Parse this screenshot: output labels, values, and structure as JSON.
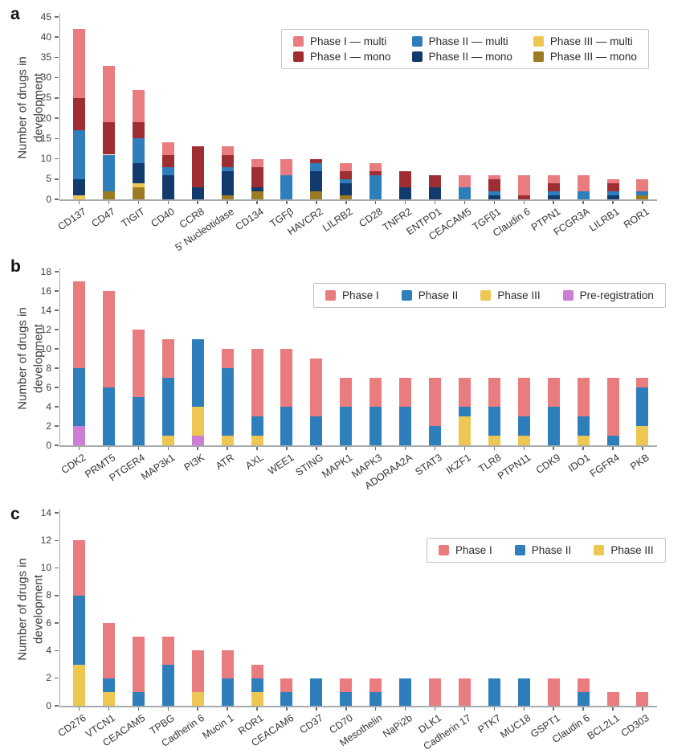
{
  "figure": {
    "panel_letters": [
      "a",
      "b",
      "c"
    ],
    "background_color": "#ffffff",
    "axis_color": "#a6abb0"
  },
  "chart_data": [
    {
      "panel_label": "a",
      "type": "bar",
      "stacked": true,
      "title": "",
      "xlabel": "",
      "ylabel": "Number of drugs in development",
      "ylabel_line1": "Number of drugs in",
      "ylabel_line2": "development",
      "ylim": [
        0,
        45
      ],
      "yticks": [
        0,
        5,
        10,
        15,
        20,
        25,
        30,
        35,
        40,
        45
      ],
      "grid": false,
      "legend_position": "top-right",
      "legend_rows": 2,
      "categories": [
        "CD137",
        "CD47",
        "TIGIT",
        "CD40",
        "CCR8",
        "5' Nucleotidase",
        "CD134",
        "TGFβ",
        "HAVCR2",
        "LILRB2",
        "CD28",
        "TNFR2",
        "ENTPD1",
        "CEACAM5",
        "TGFβ1",
        "Claudin 6",
        "PTPN1",
        "FCGR3A",
        "LILRB1",
        "ROR1"
      ],
      "series": [
        {
          "name": "Phase I — multi",
          "color": "#E97C7E",
          "values": [
            17,
            14,
            8,
            3,
            0,
            2,
            2,
            4,
            0,
            2,
            2,
            0,
            0,
            3,
            1,
            5,
            2,
            4,
            1,
            3
          ]
        },
        {
          "name": "Phase I — mono",
          "color": "#9F2E33",
          "values": [
            8,
            8,
            4,
            3,
            10,
            3,
            5,
            0,
            1,
            2,
            1,
            4,
            3,
            0,
            3,
            1,
            2,
            0,
            2,
            0
          ]
        },
        {
          "name": "Phase II — multi",
          "color": "#2F7EBC",
          "values": [
            12,
            9,
            6,
            2,
            0,
            1,
            0,
            6,
            2,
            1,
            6,
            0,
            0,
            3,
            1,
            0,
            1,
            2,
            1,
            1
          ]
        },
        {
          "name": "Phase II — mono",
          "color": "#123A6D",
          "values": [
            4,
            0,
            5,
            6,
            3,
            6,
            1,
            0,
            5,
            3,
            0,
            3,
            3,
            0,
            1,
            0,
            1,
            0,
            1,
            0
          ]
        },
        {
          "name": "Phase III — multi",
          "color": "#EDC751",
          "values": [
            1,
            0,
            1,
            0,
            0,
            0,
            0,
            0,
            0,
            0,
            0,
            0,
            0,
            0,
            0,
            0,
            0,
            0,
            0,
            0
          ]
        },
        {
          "name": "Phase III — mono",
          "color": "#9C7B22",
          "values": [
            0,
            2,
            3,
            0,
            0,
            1,
            2,
            0,
            2,
            1,
            0,
            0,
            0,
            0,
            0,
            0,
            0,
            0,
            0,
            1
          ]
        }
      ],
      "stack_order_bottom_to_top": [
        "Phase III — mono",
        "Phase III — multi",
        "Phase II — mono",
        "Phase II — multi",
        "Phase I — mono",
        "Phase I — multi"
      ]
    },
    {
      "panel_label": "b",
      "type": "bar",
      "stacked": true,
      "title": "",
      "xlabel": "",
      "ylabel": "Number of drugs in development",
      "ylabel_line1": "Number of drugs in",
      "ylabel_line2": "development",
      "ylim": [
        0,
        18
      ],
      "yticks": [
        0,
        2,
        4,
        6,
        8,
        10,
        12,
        14,
        16,
        18
      ],
      "grid": false,
      "legend_position": "top-right",
      "legend_rows": 1,
      "categories": [
        "CDK2",
        "PRMT5",
        "PTGER4",
        "MAP3k1",
        "PI3K",
        "ATR",
        "AXL",
        "WEE1",
        "STING",
        "MAPK1",
        "MAPK3",
        "ADORAA2A",
        "STAT3",
        "IKZF1",
        "TLR8",
        "PTPN11",
        "CDK9",
        "IDO1",
        "FGFR4",
        "PKB"
      ],
      "series": [
        {
          "name": "Phase I",
          "color": "#E97C7E",
          "values": [
            9,
            10,
            7,
            4,
            0,
            2,
            7,
            6,
            6,
            3,
            3,
            3,
            5,
            3,
            3,
            4,
            3,
            4,
            6,
            1
          ]
        },
        {
          "name": "Phase II",
          "color": "#2F7EBC",
          "values": [
            6,
            6,
            5,
            6,
            7,
            7,
            2,
            4,
            3,
            4,
            4,
            4,
            2,
            1,
            3,
            2,
            4,
            2,
            1,
            4
          ]
        },
        {
          "name": "Phase III",
          "color": "#EDC751",
          "values": [
            0,
            0,
            0,
            1,
            3,
            1,
            1,
            0,
            0,
            0,
            0,
            0,
            0,
            3,
            1,
            1,
            0,
            1,
            0,
            2
          ]
        },
        {
          "name": "Pre-registration",
          "color": "#CC7DD4",
          "values": [
            2,
            0,
            0,
            0,
            1,
            0,
            0,
            0,
            0,
            0,
            0,
            0,
            0,
            0,
            0,
            0,
            0,
            0,
            0,
            0
          ]
        }
      ],
      "stack_order_bottom_to_top": [
        "Pre-registration",
        "Phase III",
        "Phase II",
        "Phase I"
      ]
    },
    {
      "panel_label": "c",
      "type": "bar",
      "stacked": true,
      "title": "",
      "xlabel": "",
      "ylabel": "Number of drugs in development",
      "ylabel_line1": "Number of drugs in",
      "ylabel_line2": "development",
      "ylim": [
        0,
        14
      ],
      "yticks": [
        0,
        2,
        4,
        6,
        8,
        10,
        12,
        14
      ],
      "grid": false,
      "legend_position": "top-right",
      "legend_rows": 1,
      "categories": [
        "CD276",
        "VTCN1",
        "CEACAM5",
        "TPBG",
        "Cadherin 6",
        "Mucin 1",
        "ROR1",
        "CEACAM6",
        "CD37",
        "CD70",
        "Mesothelin",
        "NaPi2b",
        "DLK1",
        "Cadherin 17",
        "PTK7",
        "MUC18",
        "GSPT1",
        "Claudin 6",
        "BCL2L1",
        "CD303"
      ],
      "series": [
        {
          "name": "Phase I",
          "color": "#E97C7E",
          "values": [
            4,
            4,
            4,
            2,
            3,
            2,
            1,
            1,
            0,
            1,
            1,
            0,
            2,
            2,
            0,
            0,
            2,
            1,
            1,
            1
          ]
        },
        {
          "name": "Phase II",
          "color": "#2F7EBC",
          "values": [
            5,
            1,
            1,
            3,
            0,
            2,
            1,
            1,
            2,
            1,
            1,
            2,
            0,
            0,
            2,
            2,
            0,
            1,
            0,
            0
          ]
        },
        {
          "name": "Phase III",
          "color": "#EDC751",
          "values": [
            3,
            1,
            0,
            0,
            1,
            0,
            1,
            0,
            0,
            0,
            0,
            0,
            0,
            0,
            0,
            0,
            0,
            0,
            0,
            0
          ]
        }
      ],
      "stack_order_bottom_to_top": [
        "Phase III",
        "Phase II",
        "Phase I"
      ]
    }
  ]
}
